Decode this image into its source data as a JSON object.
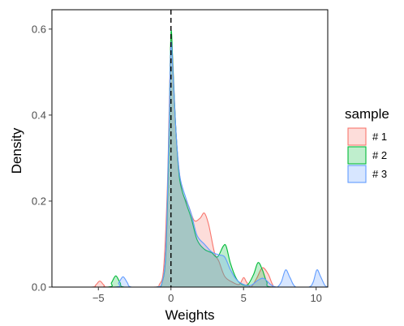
{
  "chart_data": {
    "type": "area",
    "subtype": "density",
    "xlabel": "Weights",
    "ylabel": "Density",
    "xlim": [
      -8.2,
      10.8
    ],
    "ylim": [
      0,
      0.645
    ],
    "x_ticks": [
      -5,
      0,
      5,
      10
    ],
    "x_tick_labels": [
      "−5",
      "0",
      "5",
      "10"
    ],
    "y_ticks": [
      0.0,
      0.2,
      0.4,
      0.6
    ],
    "y_tick_labels": [
      "0.0",
      "0.2",
      "0.4",
      "0.6"
    ],
    "grid": false,
    "reference_line": {
      "x": 0,
      "style": "dashed"
    },
    "legend": {
      "title": "sample",
      "position": "right"
    },
    "series": [
      {
        "name": "# 1",
        "color": "#F8766D",
        "fill": "#F8766D",
        "points": [
          [
            -8.0,
            0.0
          ],
          [
            -5.5,
            0.0
          ],
          [
            -5.2,
            0.004
          ],
          [
            -4.9,
            0.014
          ],
          [
            -4.6,
            0.004
          ],
          [
            -4.3,
            0.0
          ],
          [
            -1.2,
            0.0
          ],
          [
            -0.8,
            0.006
          ],
          [
            -0.5,
            0.045
          ],
          [
            -0.25,
            0.23
          ],
          [
            -0.1,
            0.45
          ],
          [
            0.0,
            0.575
          ],
          [
            0.12,
            0.53
          ],
          [
            0.3,
            0.39
          ],
          [
            0.5,
            0.29
          ],
          [
            0.8,
            0.22
          ],
          [
            1.2,
            0.19
          ],
          [
            1.6,
            0.155
          ],
          [
            2.0,
            0.16
          ],
          [
            2.3,
            0.172
          ],
          [
            2.6,
            0.145
          ],
          [
            3.0,
            0.08
          ],
          [
            3.3,
            0.06
          ],
          [
            3.7,
            0.025
          ],
          [
            4.2,
            0.012
          ],
          [
            4.7,
            0.006
          ],
          [
            5.0,
            0.022
          ],
          [
            5.2,
            0.012
          ],
          [
            5.5,
            0.0
          ],
          [
            5.9,
            0.02
          ],
          [
            6.3,
            0.045
          ],
          [
            6.7,
            0.03
          ],
          [
            7.0,
            0.006
          ],
          [
            7.3,
            0.0
          ],
          [
            10.5,
            0.0
          ]
        ]
      },
      {
        "name": "# 2",
        "color": "#00BA38",
        "fill": "#00BA38",
        "points": [
          [
            -8.0,
            0.0
          ],
          [
            -4.4,
            0.0
          ],
          [
            -4.1,
            0.01
          ],
          [
            -3.8,
            0.026
          ],
          [
            -3.5,
            0.01
          ],
          [
            -3.2,
            0.0
          ],
          [
            -1.0,
            0.0
          ],
          [
            -0.6,
            0.012
          ],
          [
            -0.35,
            0.08
          ],
          [
            -0.15,
            0.32
          ],
          [
            0.0,
            0.59
          ],
          [
            0.15,
            0.5
          ],
          [
            0.35,
            0.36
          ],
          [
            0.6,
            0.25
          ],
          [
            1.0,
            0.2
          ],
          [
            1.4,
            0.16
          ],
          [
            1.8,
            0.11
          ],
          [
            2.3,
            0.088
          ],
          [
            2.8,
            0.08
          ],
          [
            3.2,
            0.07
          ],
          [
            3.6,
            0.095
          ],
          [
            3.8,
            0.095
          ],
          [
            4.1,
            0.055
          ],
          [
            4.5,
            0.02
          ],
          [
            4.9,
            0.006
          ],
          [
            5.3,
            0.006
          ],
          [
            5.7,
            0.03
          ],
          [
            6.0,
            0.057
          ],
          [
            6.3,
            0.04
          ],
          [
            6.6,
            0.012
          ],
          [
            7.0,
            0.0
          ],
          [
            10.5,
            0.0
          ]
        ]
      },
      {
        "name": "# 3",
        "color": "#619CFF",
        "fill": "#619CFF",
        "points": [
          [
            -8.0,
            0.0
          ],
          [
            -3.9,
            0.0
          ],
          [
            -3.6,
            0.01
          ],
          [
            -3.3,
            0.024
          ],
          [
            -3.0,
            0.01
          ],
          [
            -2.7,
            0.0
          ],
          [
            -1.0,
            0.0
          ],
          [
            -0.6,
            0.012
          ],
          [
            -0.35,
            0.09
          ],
          [
            -0.15,
            0.35
          ],
          [
            0.0,
            0.565
          ],
          [
            0.15,
            0.49
          ],
          [
            0.35,
            0.36
          ],
          [
            0.6,
            0.26
          ],
          [
            1.0,
            0.21
          ],
          [
            1.4,
            0.17
          ],
          [
            1.8,
            0.12
          ],
          [
            2.3,
            0.1
          ],
          [
            2.8,
            0.082
          ],
          [
            3.3,
            0.075
          ],
          [
            3.7,
            0.07
          ],
          [
            4.1,
            0.04
          ],
          [
            4.5,
            0.018
          ],
          [
            5.0,
            0.006
          ],
          [
            5.5,
            0.004
          ],
          [
            6.0,
            0.016
          ],
          [
            6.4,
            0.02
          ],
          [
            6.9,
            0.005
          ],
          [
            7.3,
            0.0
          ],
          [
            7.6,
            0.012
          ],
          [
            7.9,
            0.04
          ],
          [
            8.2,
            0.022
          ],
          [
            8.6,
            0.0
          ],
          [
            9.5,
            0.0
          ],
          [
            9.8,
            0.012
          ],
          [
            10.05,
            0.04
          ],
          [
            10.3,
            0.025
          ],
          [
            10.6,
            0.004
          ],
          [
            10.8,
            0.0
          ]
        ]
      }
    ]
  }
}
